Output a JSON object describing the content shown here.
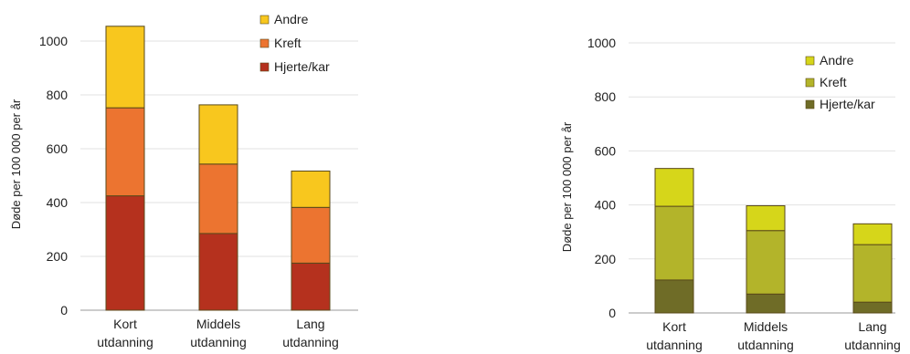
{
  "chart_data": [
    {
      "type": "bar",
      "stacked": true,
      "ylabel": "Døde per 100 000 per år",
      "ylim": [
        0,
        1100
      ],
      "yticks": [
        0,
        200,
        400,
        600,
        800,
        1000
      ],
      "grid": true,
      "legend_position": "top-right",
      "categories": [
        [
          "Kort",
          "utdanning"
        ],
        [
          "Middels",
          "utdanning"
        ],
        [
          "Lang",
          "utdanning"
        ]
      ],
      "series": [
        {
          "name": "Hjerte/kar",
          "color": "#b5311e",
          "values": [
            425,
            285,
            175
          ]
        },
        {
          "name": "Kreft",
          "color": "#ec7430",
          "values": [
            327,
            258,
            207
          ]
        },
        {
          "name": "Andre",
          "color": "#f8c71e",
          "values": [
            303,
            220,
            135
          ]
        }
      ]
    },
    {
      "type": "bar",
      "stacked": true,
      "ylabel": "Døde per 100 000 per år",
      "ylim": [
        0,
        1100
      ],
      "yticks": [
        0,
        200,
        400,
        600,
        800,
        1000
      ],
      "grid": true,
      "legend_position": "top-right",
      "categories": [
        [
          "Kort",
          "utdanning"
        ],
        [
          "Middels",
          "utdanning"
        ],
        [
          "Lang",
          "utdanning"
        ]
      ],
      "series": [
        {
          "name": "Hjerte/kar",
          "color": "#6f6c27",
          "values": [
            122,
            70,
            40
          ]
        },
        {
          "name": "Kreft",
          "color": "#b3b42a",
          "values": [
            273,
            235,
            213
          ]
        },
        {
          "name": "Andre",
          "color": "#d6d61a",
          "values": [
            140,
            92,
            77
          ]
        }
      ]
    }
  ]
}
